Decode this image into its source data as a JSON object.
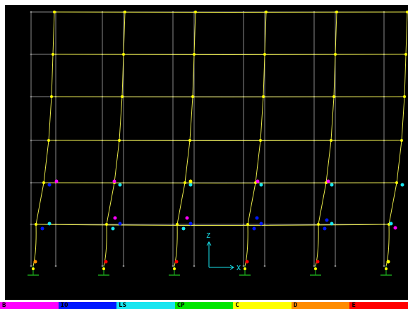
{
  "colors": {
    "background": "#000000",
    "undeformed_grid": "#8a8a8a",
    "deformed_frame": "#e8e84a",
    "joint": "#ffff00",
    "support": "#1aa31a",
    "axis": "#19e6f0"
  },
  "axes": {
    "z_label": "Z",
    "x_label": "X"
  },
  "legend": [
    {
      "label": "B",
      "color": "#ff00ff"
    },
    {
      "label": "IO",
      "color": "#0018ff"
    },
    {
      "label": "LS",
      "color": "#19e6f0"
    },
    {
      "label": "CP",
      "color": "#00e600"
    },
    {
      "label": "C",
      "color": "#ffff00"
    },
    {
      "label": "D",
      "color": "#ff8c00"
    },
    {
      "label": "E",
      "color": "#ff0000"
    }
  ]
}
